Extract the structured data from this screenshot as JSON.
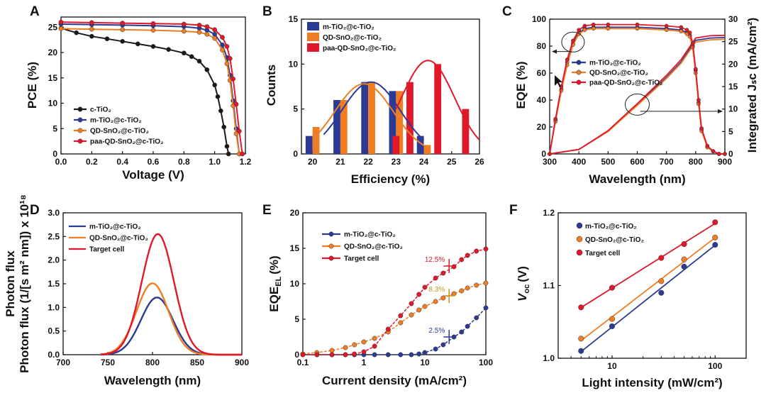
{
  "colors": {
    "black": "#1a1a1a",
    "blue": "#2b3a94",
    "orange": "#ef7d24",
    "red": "#e0182a",
    "darkorange": "#c8901e"
  },
  "chart_data": [
    {
      "panel": "A",
      "type": "line",
      "xlabel": "Voltage (V)",
      "ylabel": "PCE (%)",
      "xlim": [
        0,
        1.2
      ],
      "ylim": [
        0,
        27
      ],
      "xticks": [
        "0.0",
        "0.2",
        "0.4",
        "0.6",
        "0.8",
        "1.0",
        "1.2"
      ],
      "yticks": [
        "0",
        "5",
        "10",
        "15",
        "20",
        "25"
      ],
      "legend": "bottom-left",
      "series": [
        {
          "name": "c-TiO₂",
          "x": [
            0,
            0.1,
            0.2,
            0.3,
            0.4,
            0.5,
            0.6,
            0.7,
            0.8,
            0.85,
            0.9,
            0.95,
            1.0,
            1.02,
            1.04,
            1.06,
            1.08,
            1.09
          ],
          "y": [
            24.8,
            23.9,
            23.2,
            22.7,
            22.2,
            21.7,
            21.2,
            20.6,
            19.9,
            19.2,
            18.3,
            16.6,
            13.6,
            11.3,
            8.5,
            5.3,
            1.5,
            0
          ]
        },
        {
          "name": "m-TiO₂@c-TiO₂",
          "x": [
            0,
            0.2,
            0.4,
            0.6,
            0.8,
            0.9,
            0.95,
            1.0,
            1.05,
            1.08,
            1.1,
            1.12,
            1.14,
            1.16
          ],
          "y": [
            25.6,
            25.5,
            25.4,
            25.3,
            25.1,
            24.8,
            24.4,
            23.6,
            21.5,
            19.0,
            15.5,
            10.5,
            5.0,
            0
          ]
        },
        {
          "name": "QD-SnO₂@c-TiO₂",
          "x": [
            0,
            0.2,
            0.4,
            0.6,
            0.8,
            0.9,
            0.95,
            1.0,
            1.05,
            1.08,
            1.1,
            1.12,
            1.14,
            1.16
          ],
          "y": [
            24.7,
            24.6,
            24.5,
            24.4,
            24.2,
            24.0,
            23.6,
            22.8,
            20.5,
            17.8,
            14.5,
            9.5,
            4.0,
            0
          ]
        },
        {
          "name": "paa-QD-SnO₂@c-TiO₂",
          "x": [
            0,
            0.2,
            0.4,
            0.6,
            0.8,
            0.9,
            0.95,
            1.0,
            1.05,
            1.08,
            1.1,
            1.12,
            1.14,
            1.16,
            1.18
          ],
          "y": [
            26.0,
            25.9,
            25.8,
            25.7,
            25.6,
            25.4,
            25.1,
            24.5,
            23.0,
            21.2,
            18.8,
            14.8,
            9.8,
            4.5,
            0
          ]
        }
      ]
    },
    {
      "panel": "B",
      "type": "bar",
      "xlabel": "Efficiency (%)",
      "ylabel": "Counts",
      "xlim": [
        19.6,
        26
      ],
      "ylim": [
        0,
        15
      ],
      "xticks": [
        "20",
        "21",
        "22",
        "23",
        "24",
        "25",
        "26"
      ],
      "yticks": [
        "0",
        "5",
        "10",
        "15"
      ],
      "legend": "top-left",
      "series": [
        {
          "name": "m-TiO₂@c-TiO₂",
          "x": [
            20,
            21,
            22,
            23,
            24
          ],
          "values": [
            2,
            6,
            8,
            7,
            2
          ]
        },
        {
          "name": "QD-SnO₂@c-TiO₂",
          "x": [
            20,
            21,
            22,
            23,
            24
          ],
          "values": [
            3,
            6,
            8,
            7,
            1
          ]
        },
        {
          "name": "paa-QD-SnO₂@c-TiO₂",
          "x": [
            23,
            23.5,
            24.5,
            25.5
          ],
          "values": [
            2,
            8,
            10,
            5
          ]
        }
      ]
    },
    {
      "panel": "C",
      "type": "line",
      "xlabel": "Wavelength (nm)",
      "ylabel": "EQE (%)",
      "y2label": "Integrated Jₛᴄ (mA/cm²)",
      "xlim": [
        300,
        900
      ],
      "ylim": [
        0,
        100
      ],
      "y2lim": [
        0,
        30
      ],
      "xticks": [
        "300",
        "400",
        "500",
        "600",
        "700",
        "800",
        "900"
      ],
      "yticks": [
        "0",
        "20",
        "40",
        "60",
        "80",
        "100"
      ],
      "y2ticks": [
        "0",
        "5",
        "10",
        "15",
        "20",
        "25",
        "30"
      ],
      "legend": "center-left",
      "series": [
        {
          "name": "m-TiO₂@c-TiO₂",
          "x": [
            300,
            320,
            340,
            360,
            380,
            400,
            420,
            450,
            500,
            600,
            700,
            750,
            770,
            780,
            790,
            800,
            810,
            820,
            840,
            860,
            880,
            900
          ],
          "y": [
            0,
            25,
            48,
            68,
            82,
            90,
            93,
            94,
            94,
            94,
            93,
            92,
            90,
            88,
            80,
            62,
            38,
            18,
            5,
            2,
            0,
            0
          ]
        },
        {
          "name": "QD-SnO₂@c-TiO₂",
          "x": [
            300,
            320,
            340,
            360,
            380,
            400,
            420,
            450,
            500,
            600,
            700,
            750,
            770,
            780,
            790,
            800,
            810,
            820,
            840,
            860,
            880,
            900
          ],
          "y": [
            0,
            24,
            47,
            66,
            81,
            89,
            92,
            93,
            93,
            93,
            92,
            91,
            89,
            87,
            79,
            60,
            37,
            17,
            5,
            2,
            0,
            0
          ]
        },
        {
          "name": "paa-QD-SnO₂@c-TiO₂",
          "x": [
            300,
            320,
            340,
            360,
            380,
            400,
            420,
            450,
            500,
            600,
            700,
            750,
            770,
            780,
            790,
            800,
            810,
            820,
            840,
            860,
            880,
            900
          ],
          "y": [
            0,
            26,
            50,
            70,
            84,
            92,
            95,
            96,
            96,
            96,
            95,
            94,
            92,
            90,
            82,
            63,
            40,
            19,
            6,
            2,
            0,
            0
          ]
        }
      ],
      "integrated": [
        {
          "name": "m-TiO₂@c-TiO₂",
          "x": [
            300,
            400,
            500,
            600,
            700,
            750,
            800,
            850,
            900
          ],
          "y": [
            0,
            1,
            5,
            11,
            17,
            20.5,
            25.3,
            25.8,
            25.9
          ]
        },
        {
          "name": "QD-SnO₂@c-TiO₂",
          "x": [
            300,
            400,
            500,
            600,
            700,
            750,
            800,
            850,
            900
          ],
          "y": [
            0,
            1,
            5,
            10.8,
            16.8,
            20.2,
            24.9,
            25.4,
            25.5
          ]
        },
        {
          "name": "paa-QD-SnO₂@c-TiO₂",
          "x": [
            300,
            400,
            500,
            600,
            700,
            750,
            800,
            850,
            900
          ],
          "y": [
            0,
            1,
            5.2,
            11.2,
            17.5,
            21,
            25.8,
            26.3,
            26.4
          ]
        }
      ]
    },
    {
      "panel": "D",
      "type": "line",
      "xlabel": "Wavelength (nm)",
      "ylabel": "Photon flux (1/[s m² nm]) x 10¹⁸",
      "xlim": [
        700,
        900
      ],
      "ylim": [
        0,
        3
      ],
      "xticks": [
        "700",
        "750",
        "800",
        "850",
        "900"
      ],
      "yticks": [
        "0.0",
        "0.5",
        "1.0",
        "1.5",
        "2.0",
        "2.5",
        "3.0"
      ],
      "legend": "top-left",
      "series": [
        {
          "name": "m-TiO₂@c-TiO₂",
          "peak": 805,
          "amp": 1.21,
          "sigma": 18
        },
        {
          "name": "QD-SnO₂@c-TiO₂",
          "peak": 800,
          "amp": 1.51,
          "sigma": 18
        },
        {
          "name": "Target cell",
          "peak": 806,
          "amp": 2.55,
          "sigma": 18
        }
      ]
    },
    {
      "panel": "E",
      "type": "line",
      "xlabel": "Current density (mA/cm²)",
      "ylabel": "EQE",
      "ylabel_sub": "EL",
      "ylabel_unit": "(%)",
      "xlim_log": [
        0.1,
        100
      ],
      "ylim": [
        0,
        20
      ],
      "xticks": [
        "0.1",
        "1",
        "10",
        "100"
      ],
      "yticks": [
        "0",
        "5",
        "10",
        "15",
        "20"
      ],
      "legend": "top-left",
      "series": [
        {
          "name": "m-TiO₂@c-TiO₂",
          "x": [
            0.1,
            0.17,
            0.3,
            0.5,
            0.7,
            1,
            1.5,
            2.5,
            4,
            6,
            8,
            10,
            15,
            20,
            30,
            40,
            50,
            70,
            100
          ],
          "y": [
            0,
            0,
            0,
            0,
            0,
            0,
            0,
            0,
            0,
            0,
            0.1,
            0.3,
            0.8,
            1.4,
            2.5,
            3.2,
            4.0,
            5.2,
            6.6
          ]
        },
        {
          "name": "QD-SnO₂@c-TiO₂",
          "x": [
            0.1,
            0.17,
            0.3,
            0.5,
            0.7,
            1,
            1.5,
            2.5,
            4,
            6,
            8,
            10,
            15,
            20,
            30,
            40,
            50,
            70,
            100
          ],
          "y": [
            0.1,
            0.3,
            0.6,
            1.0,
            1.4,
            1.8,
            2.3,
            3.2,
            4.5,
            5.6,
            6.3,
            6.8,
            7.5,
            8.0,
            8.6,
            9.0,
            9.4,
            9.8,
            10.1
          ]
        },
        {
          "name": "Target cell",
          "x": [
            0.1,
            0.17,
            0.3,
            0.5,
            0.7,
            1,
            1.5,
            2.5,
            4,
            6,
            8,
            10,
            15,
            20,
            30,
            40,
            50,
            70,
            100
          ],
          "y": [
            0,
            0,
            0,
            0,
            0.1,
            0.4,
            1.2,
            3.6,
            5.5,
            7.2,
            8.5,
            9.5,
            10.8,
            11.5,
            12.4,
            13.4,
            14.0,
            14.6,
            14.9
          ]
        }
      ],
      "annotations": [
        {
          "text": "12.5%",
          "x": 25,
          "y": 12.5,
          "series": "Target cell"
        },
        {
          "text": "8.3%",
          "x": 25,
          "y": 8.3,
          "series": "QD-SnO₂@c-TiO₂"
        },
        {
          "text": "2.5%",
          "x": 25,
          "y": 2.5,
          "series": "m-TiO₂@c-TiO₂"
        }
      ]
    },
    {
      "panel": "F",
      "type": "scatter",
      "xlabel": "Light intensity (mW/cm²)",
      "ylabel": "V",
      "ylabel_sub": "oc",
      "ylabel_unit": "(V)",
      "xlim_log": [
        3,
        200
      ],
      "ylim": [
        1.0,
        1.2
      ],
      "xticks": [
        "10",
        "100"
      ],
      "yticks": [
        "1.0",
        "1.1",
        "1.2"
      ],
      "legend": "top-left",
      "series": [
        {
          "name": "m-TiO₂@c-TiO₂",
          "x": [
            5,
            10,
            30,
            50,
            100
          ],
          "y": [
            1.01,
            1.044,
            1.09,
            1.126,
            1.156
          ]
        },
        {
          "name": "QD-SnO₂@c-TiO₂",
          "x": [
            5,
            10,
            30,
            50,
            100
          ],
          "y": [
            1.027,
            1.054,
            1.106,
            1.136,
            1.166
          ]
        },
        {
          "name": "Target cell",
          "x": [
            5,
            10,
            30,
            50,
            100
          ],
          "y": [
            1.07,
            1.097,
            1.138,
            1.157,
            1.187
          ]
        }
      ]
    }
  ]
}
